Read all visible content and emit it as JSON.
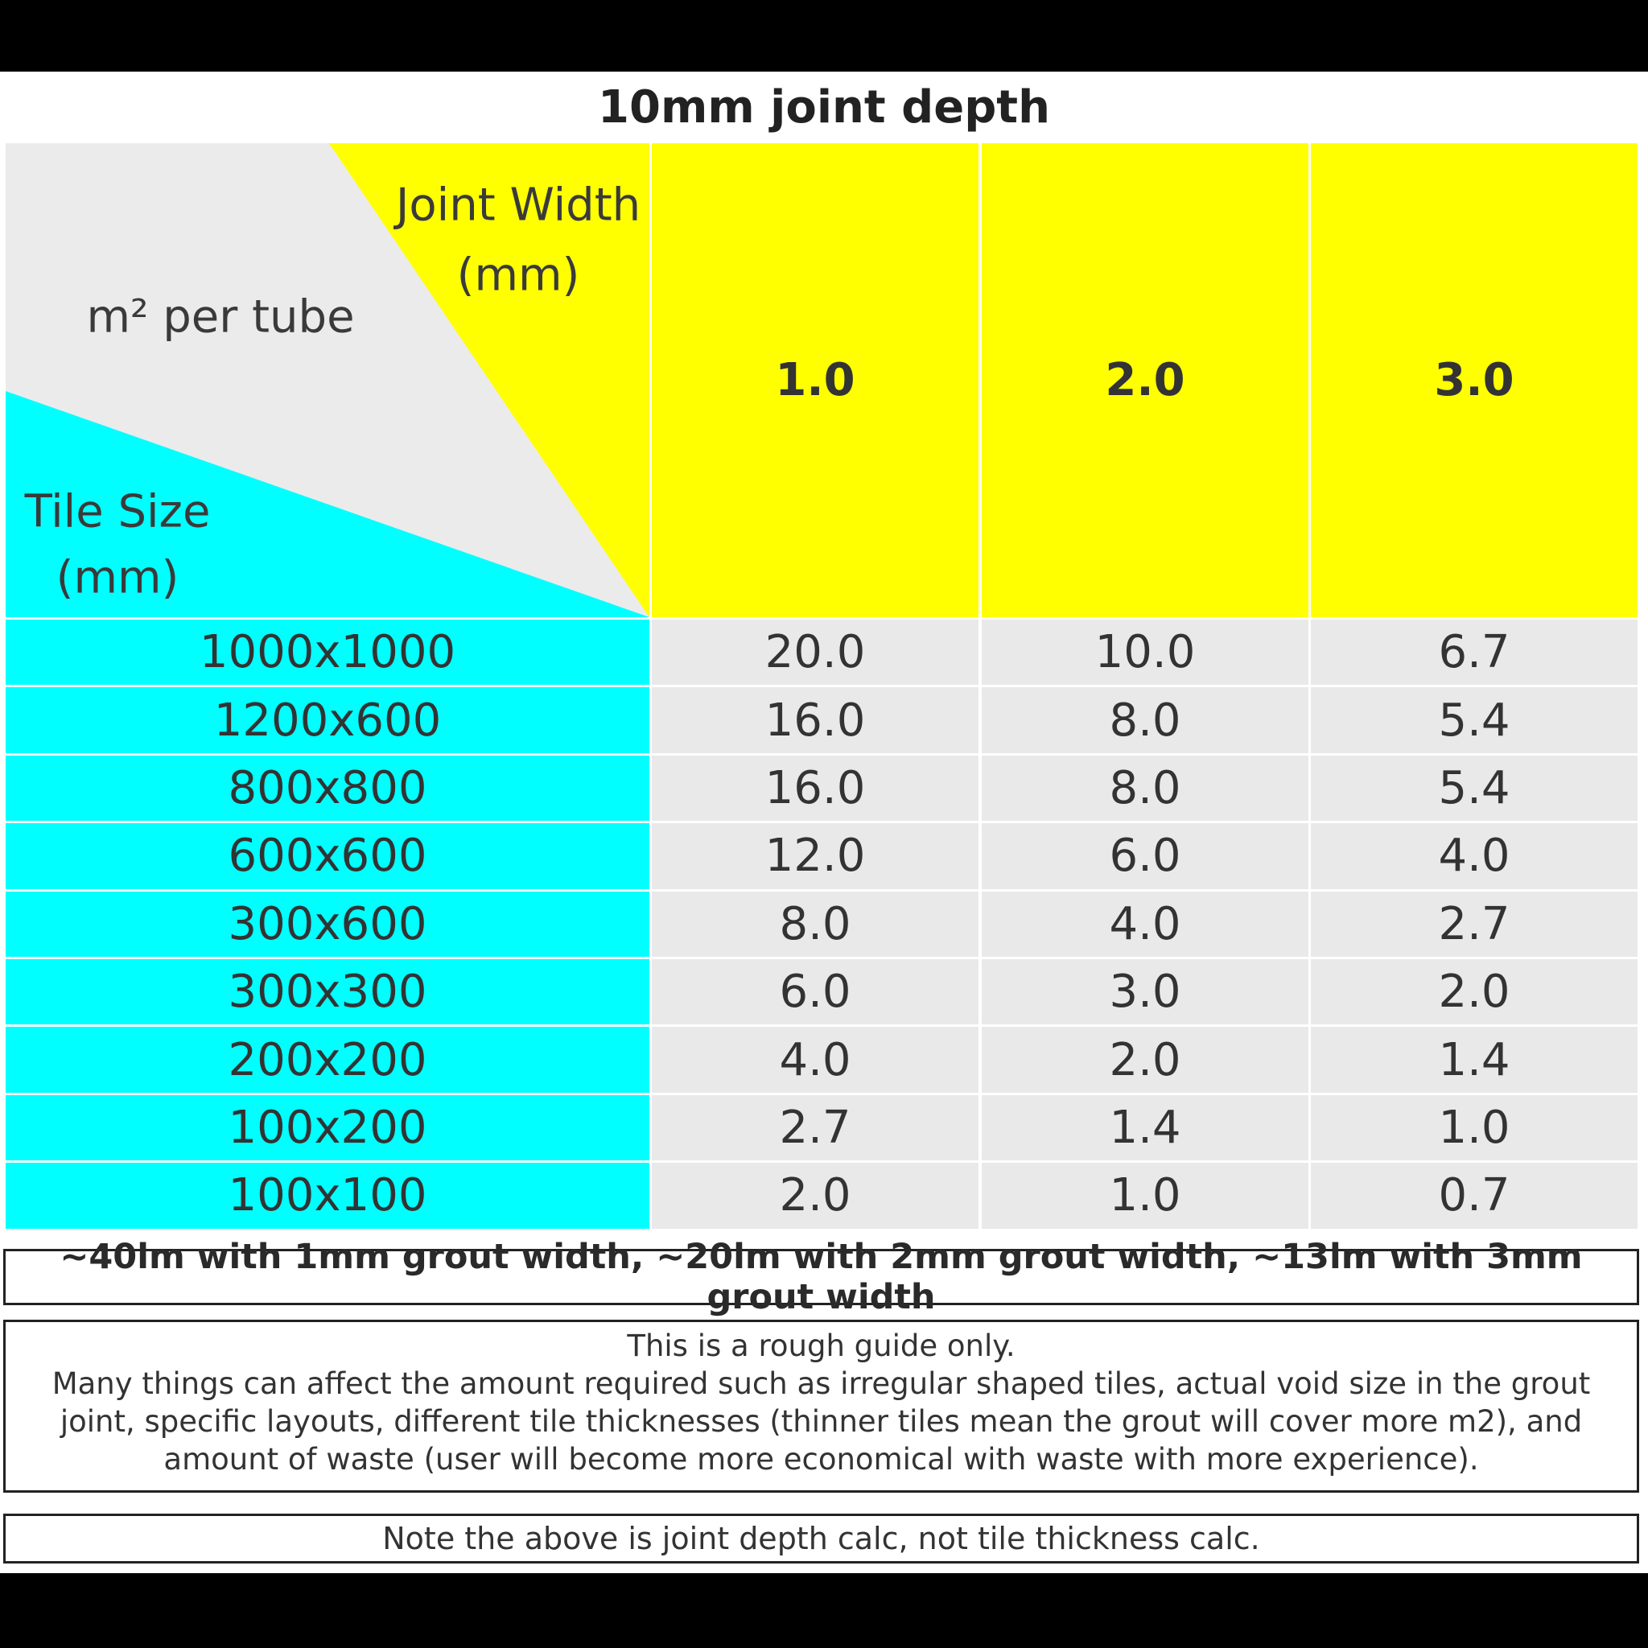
{
  "title": "10mm joint depth",
  "header": {
    "corner_top": [
      "Joint Width",
      "(mm)"
    ],
    "corner_middle": "m² per tube",
    "corner_bottom": [
      "Tile Size",
      "(mm)"
    ]
  },
  "table": {
    "columns": [
      "1.0",
      "2.0",
      "3.0"
    ],
    "rows": [
      [
        "1000x1000",
        "20.0",
        "10.0",
        "6.7"
      ],
      [
        "1200x600",
        "16.0",
        "8.0",
        "5.4"
      ],
      [
        "800x800",
        "16.0",
        "8.0",
        "5.4"
      ],
      [
        "600x600",
        "12.0",
        "6.0",
        "4.0"
      ],
      [
        "300x600",
        "8.0",
        "4.0",
        "2.7"
      ],
      [
        "300x300",
        "6.0",
        "3.0",
        "2.0"
      ],
      [
        "200x200",
        "4.0",
        "2.0",
        "1.4"
      ],
      [
        "100x200",
        "2.7",
        "1.4",
        "1.0"
      ],
      [
        "100x100",
        "2.0",
        "1.0",
        "0.7"
      ]
    ]
  },
  "notes": {
    "coverage": "~40lm with 1mm grout width, ~20lm with 2mm grout width, ~13lm with 3mm grout width",
    "disclaimer": [
      "This is a rough guide only.",
      "Many things can affect the amount required such as irregular shaped tiles, actual void size in the grout",
      "joint, specific layouts, different tile thicknesses (thinner tiles mean the grout will cover more m2), and",
      "amount of waste (user will become more economical with waste with more experience)."
    ],
    "footer": "Note the above is joint depth calc, not tile thickness calc."
  }
}
